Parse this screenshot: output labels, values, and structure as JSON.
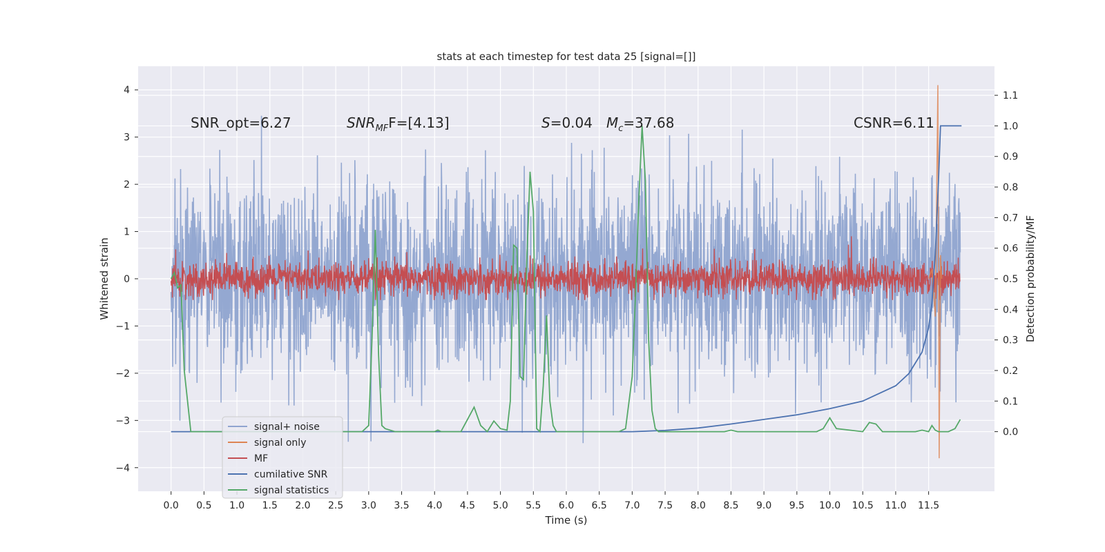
{
  "chart_data": {
    "type": "line",
    "title": "stats at each timestep for test data 25 [signal=[]]",
    "xlabel": "Time (s)",
    "ylabel_left": "Whitened strain",
    "ylabel_right": "Detection probability/MF",
    "xlim": [
      -0.5,
      12.5
    ],
    "ylim_left": [
      -4.5,
      4.5
    ],
    "ylim_right": [
      -0.195,
      1.195
    ],
    "xticks": [
      "0.0",
      "0.5",
      "1.0",
      "1.5",
      "2.0",
      "2.5",
      "3.0",
      "3.5",
      "4.0",
      "4.5",
      "5.0",
      "5.5",
      "6.0",
      "6.5",
      "7.0",
      "7.5",
      "8.0",
      "8.5",
      "9.0",
      "9.5",
      "10.0",
      "10.5",
      "11.0",
      "11.5"
    ],
    "yticks_left": [
      "4",
      "3",
      "2",
      "1",
      "0",
      "−1",
      "−2",
      "−3",
      "−4"
    ],
    "yticks_right": [
      "1.1",
      "1.0",
      "0.9",
      "0.8",
      "0.7",
      "0.6",
      "0.5",
      "0.4",
      "0.3",
      "0.2",
      "0.1",
      "0.0"
    ],
    "grid": true,
    "annotations": {
      "snr_opt": "SNR_opt=6.27",
      "snr_mf_main": "SNR",
      "snr_mf_sub": "MF",
      "snr_mf_value": "F=[4.13]",
      "s_stat": "S",
      "s_value": "=0.04",
      "mc_main": "M",
      "mc_sub": "c",
      "mc_value": "=37.68",
      "csnr": "CSNR=6.11"
    },
    "legend": {
      "position": "lower-left",
      "entries": [
        "signal+ noise",
        "signal only",
        "MF",
        "cumilative SNR",
        "signal statistics"
      ]
    },
    "colors": {
      "signal_noise": "#8fa4cf",
      "signal_only": "#dd8452",
      "mf": "#c44e52",
      "cumulative_snr": "#4c72b0",
      "signal_statistics": "#55a868",
      "plot_bg": "#eaeaf2",
      "grid": "#ffffff"
    },
    "series": [
      {
        "name": "signal+ noise",
        "axis": "left",
        "description_amplitude": "noise std ~1.0, range ~[-4.1, 3.85]",
        "x_range": [
          0.0,
          11.98
        ]
      },
      {
        "name": "signal only",
        "axis": "left",
        "x": [
          11.5,
          11.55,
          11.6,
          11.62,
          11.64,
          11.66,
          11.68,
          11.7
        ],
        "y": [
          0.0,
          0.2,
          -0.8,
          1.6,
          4.1,
          -3.8,
          0.5,
          0.0
        ]
      },
      {
        "name": "MF",
        "axis": "left",
        "description_amplitude": "std ~0.2, range ~[-0.45, 0.9]",
        "x_range": [
          0.0,
          11.98
        ]
      },
      {
        "name": "cumilative SNR",
        "axis": "right",
        "x": [
          0.0,
          7.0,
          7.5,
          8.0,
          8.5,
          9.0,
          9.5,
          10.0,
          10.5,
          11.0,
          11.2,
          11.4,
          11.5,
          11.55,
          11.6,
          11.65,
          11.68,
          12.0
        ],
        "y": [
          0.0,
          0.0,
          0.004,
          0.012,
          0.025,
          0.04,
          0.055,
          0.075,
          0.1,
          0.15,
          0.19,
          0.26,
          0.34,
          0.42,
          0.58,
          0.82,
          1.0,
          1.0
        ]
      },
      {
        "name": "signal statistics",
        "axis": "right",
        "x": [
          0.0,
          0.05,
          0.1,
          0.15,
          0.2,
          0.3,
          0.5,
          2.9,
          3.0,
          3.05,
          3.1,
          3.15,
          3.2,
          3.25,
          3.4,
          3.5,
          4.0,
          4.05,
          4.1,
          4.4,
          4.5,
          4.6,
          4.7,
          4.8,
          4.9,
          5.0,
          5.1,
          5.15,
          5.2,
          5.25,
          5.3,
          5.35,
          5.4,
          5.45,
          5.5,
          5.55,
          5.6,
          5.65,
          5.7,
          5.75,
          5.8,
          5.85,
          5.9,
          6.0,
          6.8,
          6.9,
          7.0,
          7.05,
          7.1,
          7.15,
          7.2,
          7.25,
          7.3,
          7.35,
          7.4,
          8.4,
          8.5,
          8.6,
          9.8,
          9.9,
          10.0,
          10.1,
          10.5,
          10.6,
          10.7,
          10.8,
          11.3,
          11.4,
          11.5,
          11.55,
          11.6,
          11.65,
          11.7,
          11.8,
          11.9,
          11.98
        ],
        "y": [
          0.5,
          0.52,
          0.47,
          0.48,
          0.2,
          0.0,
          0.0,
          0.0,
          0.02,
          0.3,
          0.66,
          0.25,
          0.02,
          0.01,
          0.0,
          0.0,
          0.0,
          0.005,
          0.0,
          0.0,
          0.04,
          0.08,
          0.02,
          0.0,
          0.035,
          0.01,
          0.005,
          0.1,
          0.61,
          0.6,
          0.18,
          0.17,
          0.56,
          0.85,
          0.72,
          0.01,
          0.0,
          0.15,
          0.38,
          0.1,
          0.02,
          0.0,
          0.0,
          0.0,
          0.0,
          0.01,
          0.18,
          0.45,
          0.75,
          1.0,
          0.82,
          0.3,
          0.07,
          0.01,
          0.0,
          0.0,
          0.005,
          0.0,
          0.0,
          0.01,
          0.045,
          0.01,
          0.0,
          0.03,
          0.025,
          0.0,
          0.0,
          0.005,
          0.0,
          0.02,
          0.005,
          0.0,
          0.0,
          0.0,
          0.01,
          0.04
        ]
      }
    ]
  }
}
